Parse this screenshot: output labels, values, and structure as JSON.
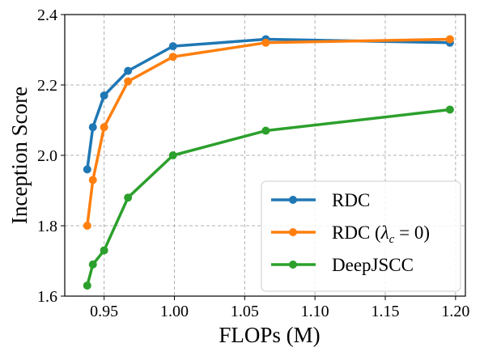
{
  "chart_data": {
    "type": "line",
    "xlabel": "FLOPs (M)",
    "ylabel": "Inception Score",
    "xlim": [
      0.922,
      1.207
    ],
    "ylim": [
      1.6,
      2.4
    ],
    "x_ticks": [
      "0.95",
      "1.00",
      "1.05",
      "1.10",
      "1.15",
      "1.20"
    ],
    "y_ticks": [
      "1.6",
      "1.8",
      "2.0",
      "2.2",
      "2.4"
    ],
    "grid": true,
    "legend_position": "lower-right",
    "series": [
      {
        "name": "RDC",
        "name_main": "RDC",
        "color": "#1f77b4",
        "x": [
          0.938,
          0.942,
          0.95,
          0.967,
          0.999,
          1.065,
          1.196
        ],
        "y": [
          1.96,
          2.08,
          2.17,
          2.24,
          2.31,
          2.33,
          2.32
        ]
      },
      {
        "name": "RDC (λc = 0)",
        "name_main": "RDC (",
        "name_lambda": "λ",
        "name_sub": "c",
        "name_tail": " = 0)",
        "color": "#ff7f0e",
        "x": [
          0.938,
          0.942,
          0.95,
          0.967,
          0.999,
          1.065,
          1.196
        ],
        "y": [
          1.8,
          1.93,
          2.08,
          2.21,
          2.28,
          2.32,
          2.33
        ]
      },
      {
        "name": "DeepJSCC",
        "name_main": "DeepJSCC",
        "color": "#2ca02c",
        "x": [
          0.938,
          0.942,
          0.95,
          0.967,
          0.999,
          1.065,
          1.196
        ],
        "y": [
          1.63,
          1.69,
          1.73,
          1.88,
          2.0,
          2.07,
          2.13
        ]
      }
    ]
  }
}
